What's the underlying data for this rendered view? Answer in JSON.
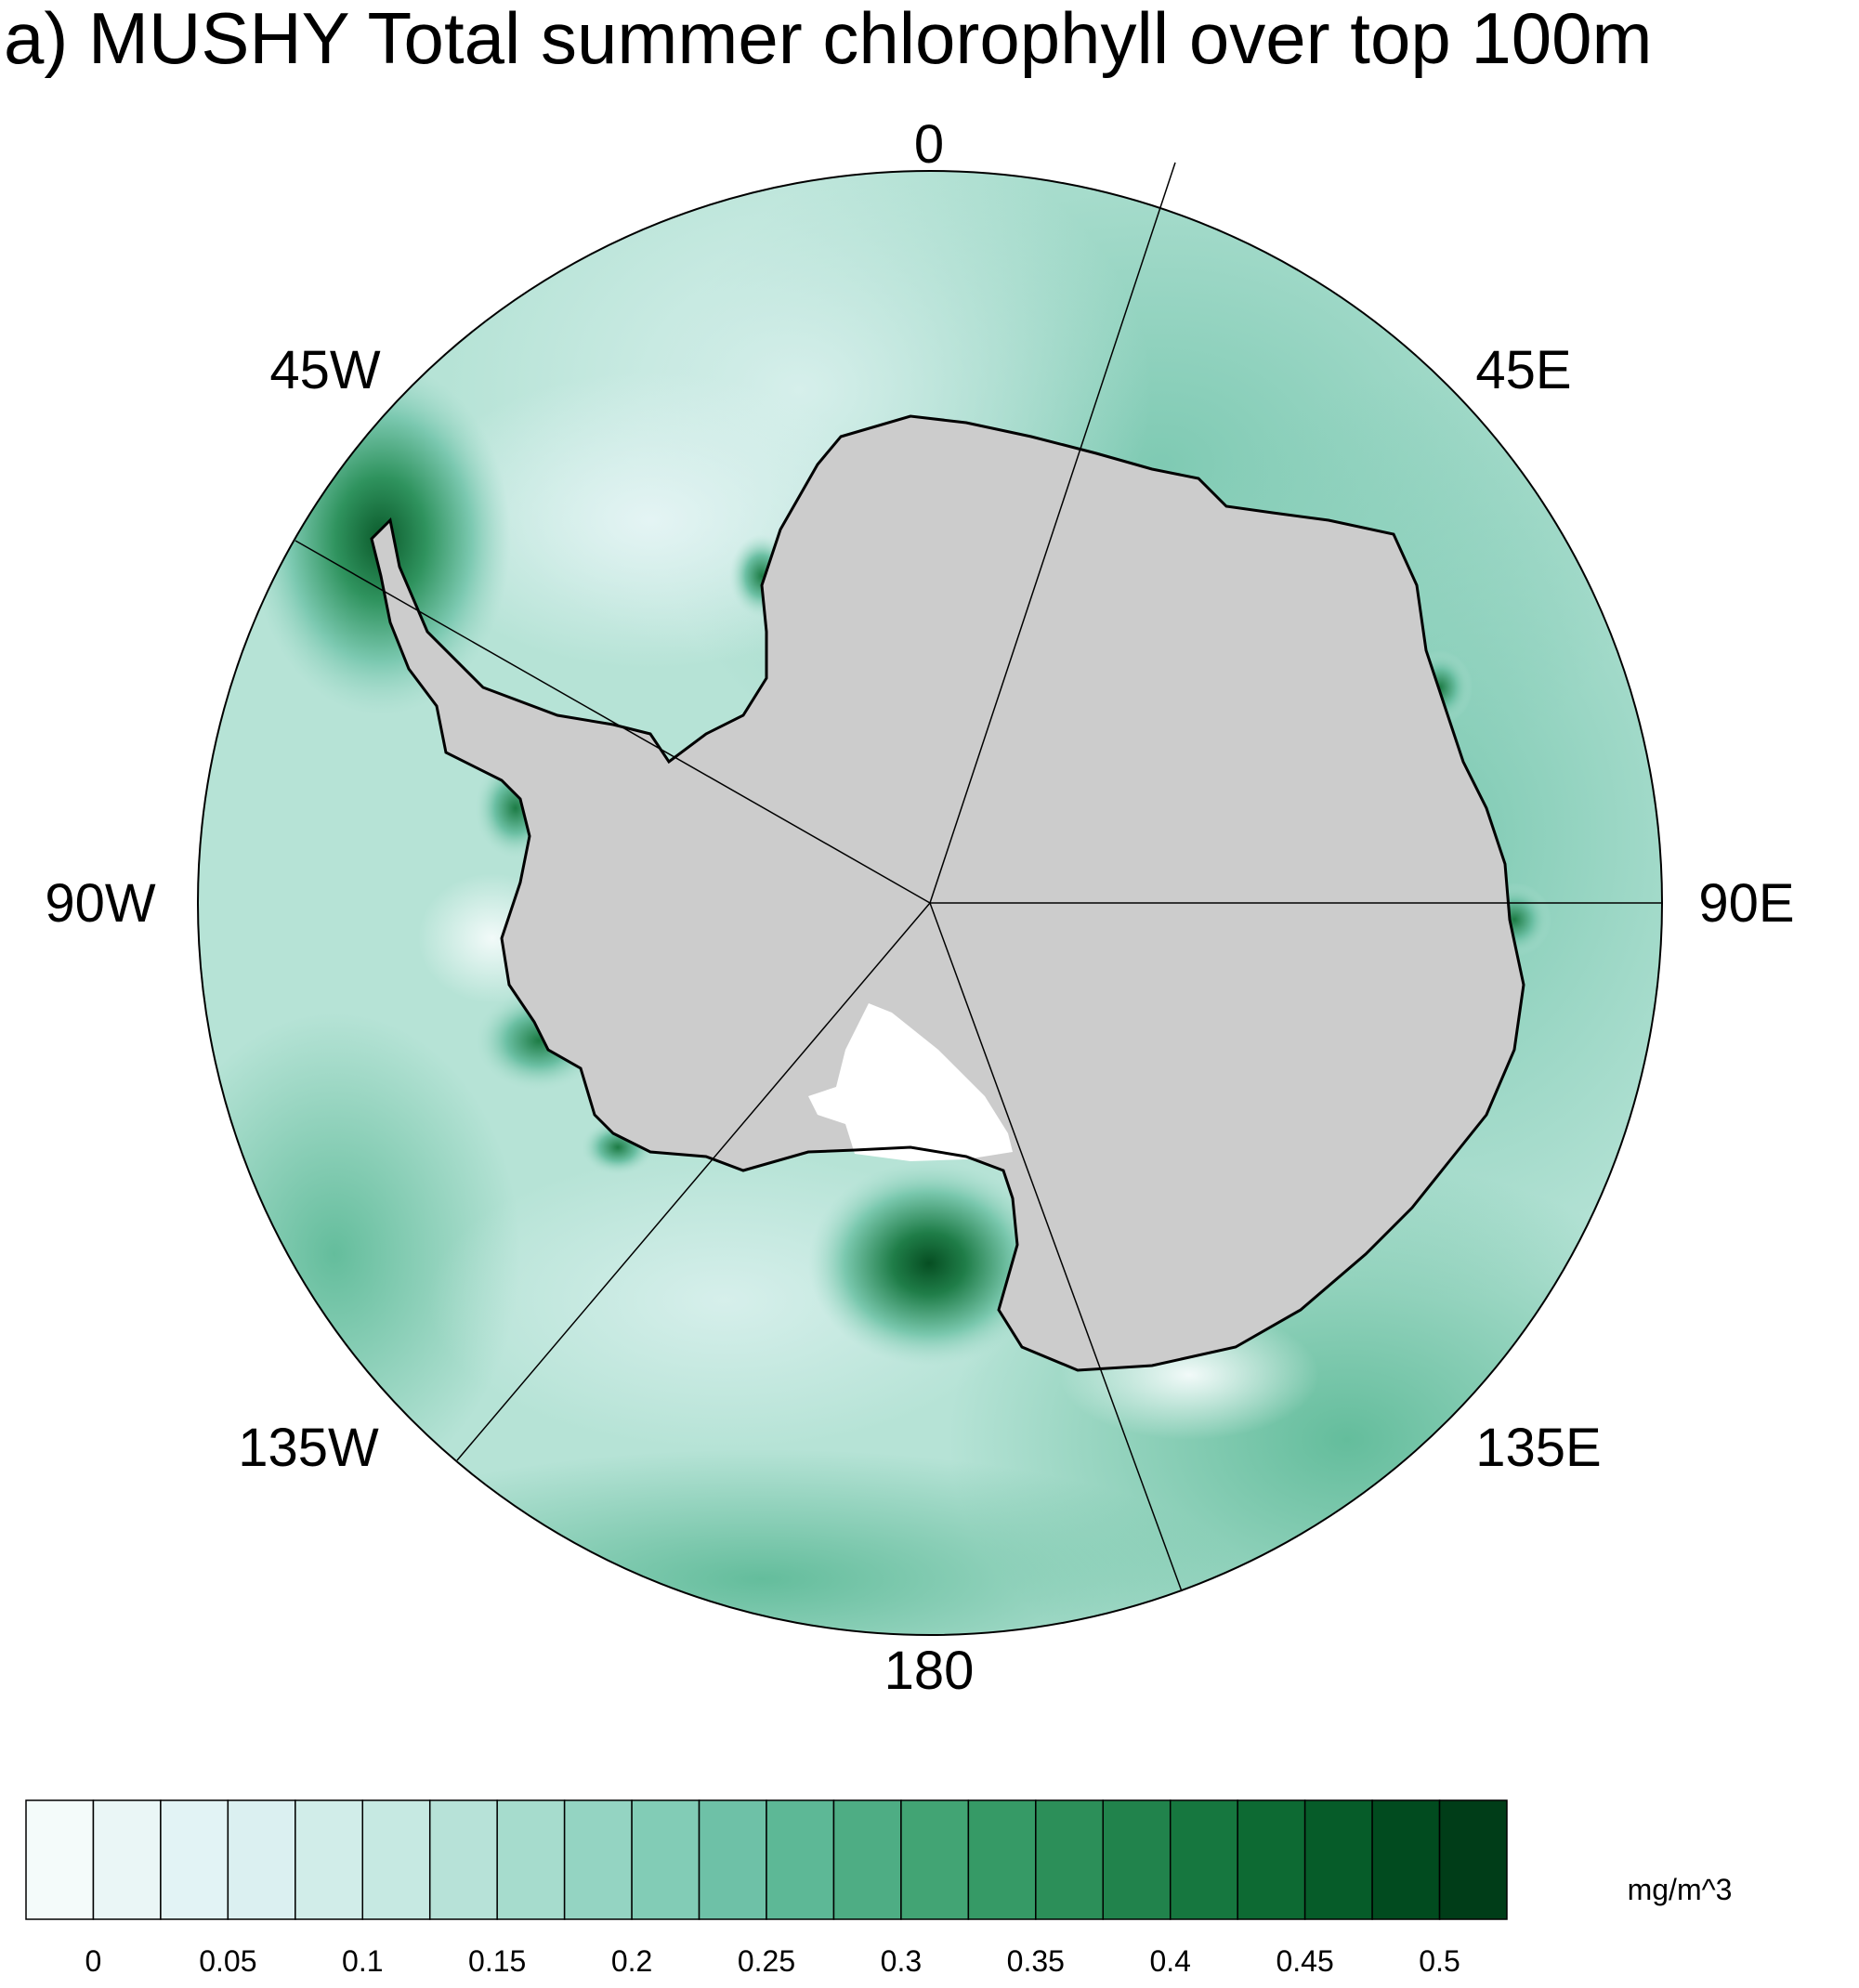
{
  "title": "a) MUSHY Total summer chlorophyll over top 100m",
  "map": {
    "projection": "south polar stereographic",
    "longitude_labels": [
      "0",
      "45E",
      "90E",
      "135E",
      "180",
      "135W",
      "90W",
      "45W"
    ],
    "land_color": "#cccccc",
    "coastline_color": "#000000",
    "ocean_base_color": "#b6e3d6"
  },
  "colorbar": {
    "units": "mg/m^3",
    "tick_labels": [
      "0",
      "0.05",
      "0.1",
      "0.15",
      "0.2",
      "0.25",
      "0.3",
      "0.35",
      "0.4",
      "0.45",
      "0.5"
    ],
    "colors": [
      "#f4fbfa",
      "#eaf6f6",
      "#e2f3f5",
      "#dbf0f1",
      "#d1ede9",
      "#c6e9e2",
      "#b7e2d8",
      "#a6dccd",
      "#94d4c2",
      "#82ccb6",
      "#6ec1a7",
      "#5db896",
      "#4ead84",
      "#42a474",
      "#369a66",
      "#2c8f59",
      "#21834c",
      "#16773f",
      "#0d6a33",
      "#065c29",
      "#014b1f",
      "#003d18"
    ]
  }
}
